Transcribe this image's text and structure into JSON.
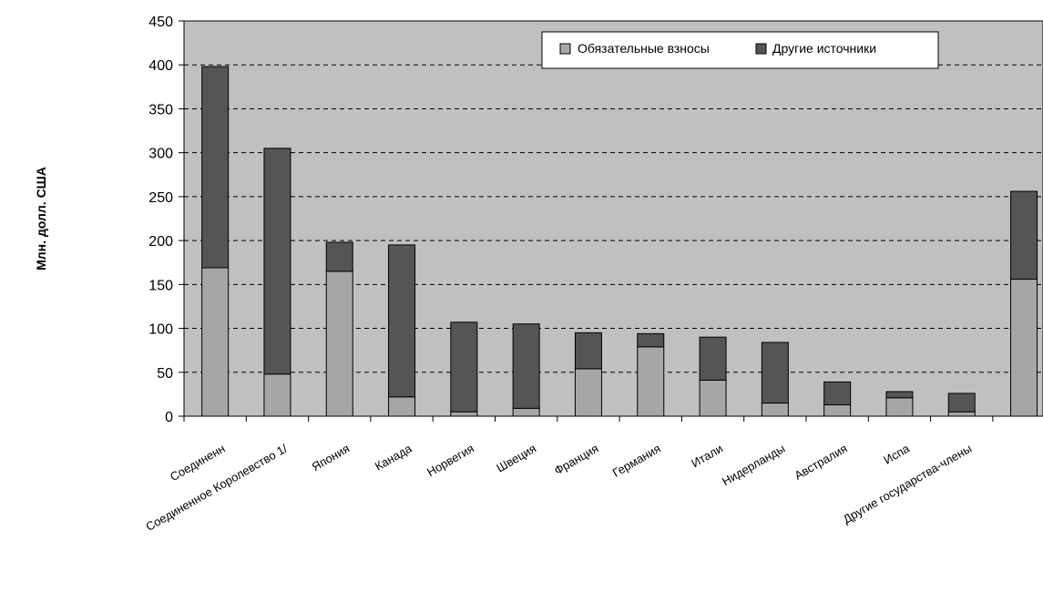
{
  "chart_data": {
    "type": "bar",
    "stacked": true,
    "title": "",
    "xlabel": "",
    "ylabel": "Млн. долл. США",
    "ylim": [
      0,
      450
    ],
    "yticks": [
      0,
      50,
      100,
      150,
      200,
      250,
      300,
      350,
      400,
      450
    ],
    "grid": "horizontal-dashed",
    "legend_position": "top-right",
    "categories": [
      "Соединенн",
      "Соединенное Королевство 1/",
      "Япония",
      "Канада",
      "Норвегия",
      "Швеция",
      "Франция",
      "Германия",
      "Итали",
      "Нидерланды",
      "Австралия",
      "Испа",
      "Другие государства-члены",
      ""
    ],
    "series": [
      {
        "name": "Обязательные взносы",
        "color": "#a6a6a6",
        "values": [
          169,
          48,
          165,
          22,
          5,
          9,
          54,
          79,
          41,
          15,
          13,
          21,
          5,
          156
        ]
      },
      {
        "name": "Другие источники",
        "color": "#555555",
        "values": [
          229,
          257,
          33,
          173,
          102,
          96,
          41,
          15,
          49,
          69,
          26,
          7,
          21,
          100
        ]
      }
    ]
  }
}
